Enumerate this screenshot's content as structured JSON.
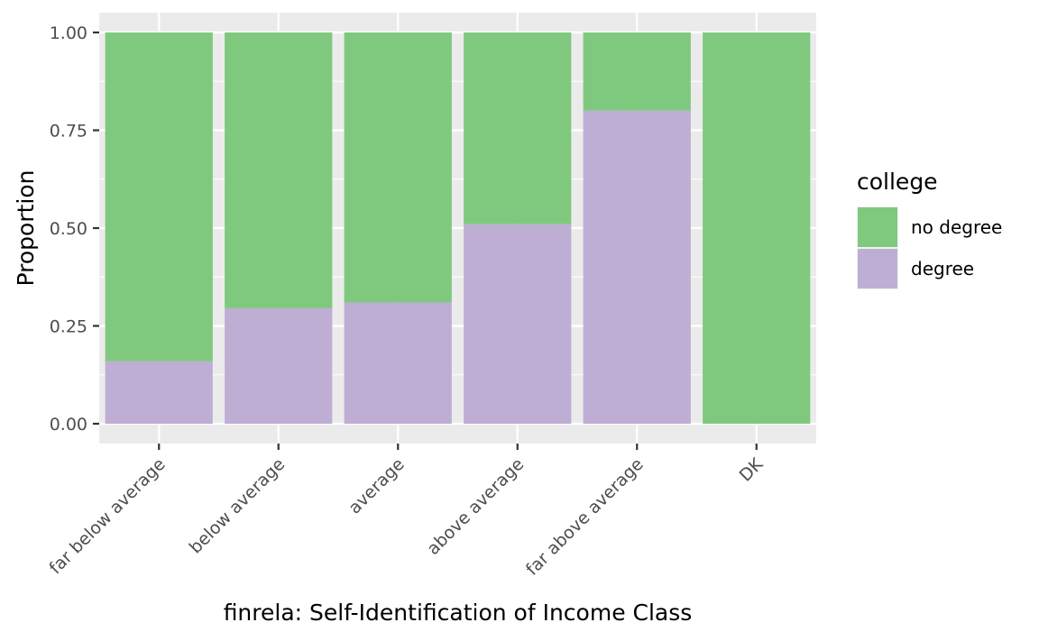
{
  "chart_data": {
    "type": "bar",
    "stacked": true,
    "categories": [
      "far below average",
      "below average",
      "average",
      "above average",
      "far above average",
      "DK"
    ],
    "series": [
      {
        "name": "no degree",
        "color": "#7fc97f",
        "values": [
          0.84,
          0.705,
          0.69,
          0.49,
          0.2,
          1.0
        ]
      },
      {
        "name": "degree",
        "color": "#beaed4",
        "values": [
          0.16,
          0.295,
          0.31,
          0.51,
          0.8,
          0.0
        ]
      }
    ],
    "xlabel": "finrela: Self-Identification of Income Class",
    "ylabel": "Proportion",
    "ylim": [
      0,
      1
    ],
    "yticks": [
      "0.00",
      "0.25",
      "0.50",
      "0.75",
      "1.00"
    ],
    "grid": true,
    "panel_background": "#ebebeb",
    "legend": {
      "title": "college",
      "position": "right"
    }
  }
}
